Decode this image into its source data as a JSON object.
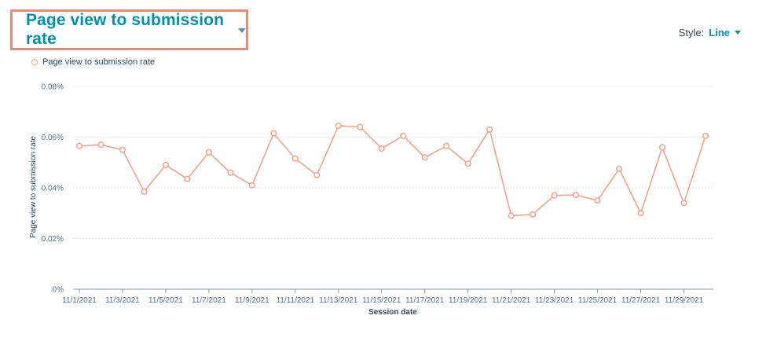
{
  "header": {
    "metric_title": "Page view to submission rate",
    "style_label": "Style:",
    "style_value": "Line"
  },
  "colors": {
    "accent": "#0091ae",
    "series": "#f5a18a",
    "highlight_box": "#f0876f"
  },
  "chart_data": {
    "type": "line",
    "title": "",
    "xlabel": "Session date",
    "ylabel": "Page view to submission rate",
    "ylim": [
      0,
      0.08
    ],
    "y_ticks": [
      "0%",
      "0.02%",
      "0.04%",
      "0.06%",
      "0.08%"
    ],
    "y_tick_values": [
      0,
      0.02,
      0.04,
      0.06,
      0.08
    ],
    "x_tick_labels": [
      "11/1/2021",
      "11/3/2021",
      "11/5/2021",
      "11/7/2021",
      "11/9/2021",
      "11/11/2021",
      "11/13/2021",
      "11/15/2021",
      "11/17/2021",
      "11/19/2021",
      "11/21/2021",
      "11/23/2021",
      "11/25/2021",
      "11/27/2021",
      "11/29/2021"
    ],
    "grid": true,
    "legend": "top-left",
    "x": [
      "11/1/2021",
      "11/2/2021",
      "11/3/2021",
      "11/4/2021",
      "11/5/2021",
      "11/6/2021",
      "11/7/2021",
      "11/8/2021",
      "11/9/2021",
      "11/10/2021",
      "11/11/2021",
      "11/12/2021",
      "11/13/2021",
      "11/14/2021",
      "11/15/2021",
      "11/16/2021",
      "11/17/2021",
      "11/18/2021",
      "11/19/2021",
      "11/20/2021",
      "11/21/2021",
      "11/22/2021",
      "11/23/2021",
      "11/24/2021",
      "11/25/2021",
      "11/26/2021",
      "11/27/2021",
      "11/28/2021",
      "11/29/2021",
      "11/30/2021"
    ],
    "series": [
      {
        "name": "Page view to submission rate",
        "values": [
          0.0565,
          0.057,
          0.055,
          0.0385,
          0.049,
          0.0435,
          0.054,
          0.046,
          0.041,
          0.0615,
          0.0515,
          0.045,
          0.0645,
          0.064,
          0.0555,
          0.0605,
          0.052,
          0.0565,
          0.0495,
          0.063,
          0.029,
          0.0295,
          0.037,
          0.0372,
          0.035,
          0.0475,
          0.03,
          0.056,
          0.034,
          0.0605
        ]
      }
    ]
  }
}
